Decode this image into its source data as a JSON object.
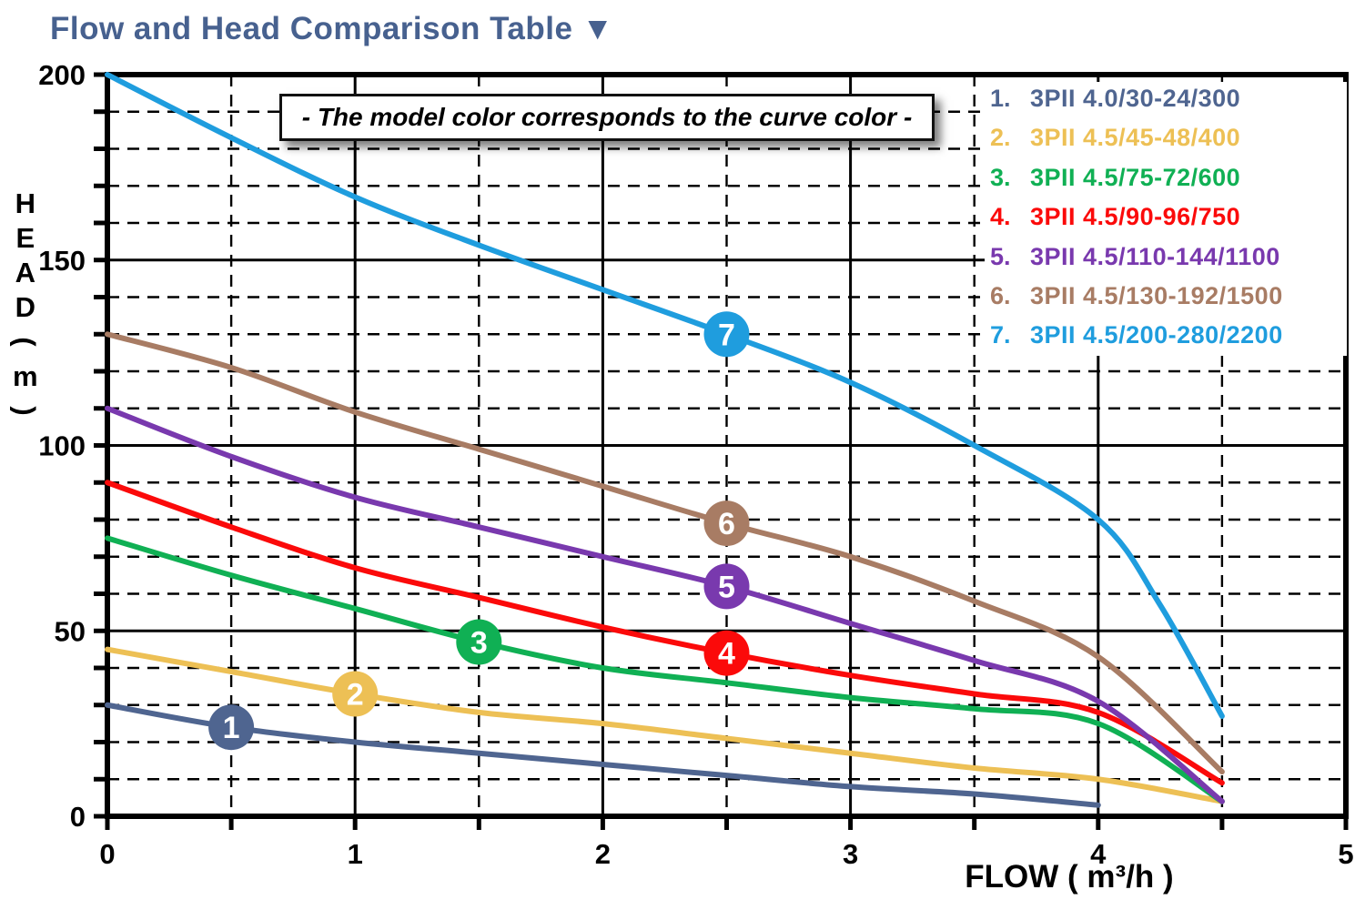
{
  "title": {
    "text": "Flow and Head Comparison Table",
    "arrow": "▼",
    "color": "#47618f"
  },
  "annotation": {
    "text": "- The model color corresponds to the curve color -"
  },
  "axes": {
    "x": {
      "label": "FLOW ( m³/h )",
      "ticks": [
        0,
        1,
        2,
        3,
        4,
        5
      ],
      "minor_step": 0.5,
      "range": [
        0,
        5
      ]
    },
    "y": {
      "label": "HEAD ( m )",
      "label_chars": [
        "H",
        "E",
        "A",
        "D",
        "(",
        "m",
        ")"
      ],
      "ticks": [
        0,
        50,
        100,
        150,
        200
      ],
      "minor_step": 10,
      "range": [
        0,
        200
      ]
    }
  },
  "chart_data": {
    "type": "line",
    "title": "Flow and Head Comparison Table",
    "xlabel": "FLOW ( m³/h )",
    "ylabel": "HEAD ( m )",
    "xlim": [
      0,
      5
    ],
    "ylim": [
      0,
      200
    ],
    "grid": {
      "major_x_step": 1,
      "major_y_step": 50,
      "minor_x_step": 0.5,
      "minor_y_step": 10,
      "major_style": "solid",
      "minor_style": "dashed"
    },
    "legend_position": "top-right-inside",
    "series": [
      {
        "id": 1,
        "name": "3PII 4.0/30-24/300",
        "color": "#4f6590",
        "marker": {
          "x": 0.5,
          "y": 24
        },
        "points": [
          [
            0,
            30
          ],
          [
            0.5,
            24
          ],
          [
            1,
            20
          ],
          [
            1.5,
            17
          ],
          [
            2,
            14
          ],
          [
            2.5,
            11
          ],
          [
            3,
            8
          ],
          [
            3.5,
            6
          ],
          [
            4,
            3
          ]
        ]
      },
      {
        "id": 2,
        "name": "3PII 4.5/45-48/400",
        "color": "#edc055",
        "marker": {
          "x": 1.0,
          "y": 33
        },
        "points": [
          [
            0,
            45
          ],
          [
            0.5,
            39
          ],
          [
            1,
            33
          ],
          [
            1.5,
            28
          ],
          [
            2,
            25
          ],
          [
            2.5,
            21
          ],
          [
            3,
            17
          ],
          [
            3.5,
            13
          ],
          [
            4,
            10
          ],
          [
            4.5,
            4
          ]
        ]
      },
      {
        "id": 3,
        "name": "3PII 4.5/75-72/600",
        "color": "#10b054",
        "marker": {
          "x": 1.5,
          "y": 47
        },
        "points": [
          [
            0,
            75
          ],
          [
            0.5,
            65
          ],
          [
            1,
            56
          ],
          [
            1.5,
            47
          ],
          [
            2,
            40
          ],
          [
            2.5,
            36
          ],
          [
            3,
            32
          ],
          [
            3.5,
            29
          ],
          [
            4,
            25
          ],
          [
            4.5,
            4
          ]
        ]
      },
      {
        "id": 4,
        "name": "3PII 4.5/90-96/750",
        "color": "#fb0a0a",
        "marker": {
          "x": 2.5,
          "y": 44
        },
        "points": [
          [
            0,
            90
          ],
          [
            0.5,
            78
          ],
          [
            1,
            67
          ],
          [
            1.5,
            59
          ],
          [
            2,
            51
          ],
          [
            2.5,
            44
          ],
          [
            3,
            38
          ],
          [
            3.5,
            33
          ],
          [
            4,
            28
          ],
          [
            4.5,
            9
          ]
        ]
      },
      {
        "id": 5,
        "name": "3PII 4.5/110-144/1100",
        "color": "#7939ae",
        "marker": {
          "x": 2.5,
          "y": 62
        },
        "points": [
          [
            0,
            110
          ],
          [
            0.5,
            97
          ],
          [
            1,
            86
          ],
          [
            1.5,
            78
          ],
          [
            2,
            70
          ],
          [
            2.5,
            62
          ],
          [
            3,
            52
          ],
          [
            3.5,
            42
          ],
          [
            4,
            31
          ],
          [
            4.5,
            4
          ]
        ]
      },
      {
        "id": 6,
        "name": "3PII 4.5/130-192/1500",
        "color": "#a87c64",
        "marker": {
          "x": 2.5,
          "y": 79
        },
        "points": [
          [
            0,
            130
          ],
          [
            0.5,
            121
          ],
          [
            1,
            109
          ],
          [
            1.5,
            99
          ],
          [
            2,
            89
          ],
          [
            2.5,
            79
          ],
          [
            3,
            70
          ],
          [
            3.5,
            58
          ],
          [
            4,
            43
          ],
          [
            4.5,
            12
          ]
        ]
      },
      {
        "id": 7,
        "name": "3PII 4.5/200-280/2200",
        "color": "#1f9dde",
        "marker": {
          "x": 2.5,
          "y": 130
        },
        "points": [
          [
            0,
            200
          ],
          [
            0.5,
            183
          ],
          [
            1,
            167
          ],
          [
            1.5,
            154
          ],
          [
            2,
            142
          ],
          [
            2.5,
            130
          ],
          [
            3,
            117
          ],
          [
            3.5,
            100
          ],
          [
            4,
            80
          ],
          [
            4.25,
            57
          ],
          [
            4.5,
            27
          ]
        ]
      }
    ]
  }
}
